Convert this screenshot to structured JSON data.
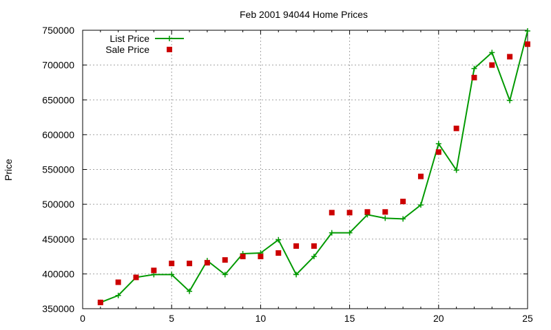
{
  "chart_data": {
    "type": "line",
    "title": "Feb 2001 94044 Home Prices",
    "xlabel": "",
    "ylabel": "Price",
    "xlim": [
      0,
      25
    ],
    "ylim": [
      350000,
      750000
    ],
    "x_ticks": [
      0,
      5,
      10,
      15,
      20,
      25
    ],
    "y_ticks": [
      350000,
      400000,
      450000,
      500000,
      550000,
      600000,
      650000,
      700000,
      750000
    ],
    "grid": true,
    "legend_position": "top-left",
    "series": [
      {
        "name": "List Price",
        "style": "line-with-plus-markers",
        "color": "#009900",
        "x": [
          1,
          2,
          3,
          4,
          5,
          6,
          7,
          8,
          9,
          10,
          11,
          12,
          13,
          14,
          15,
          16,
          17,
          18,
          19,
          20,
          21,
          22,
          23,
          24,
          25
        ],
        "values": [
          359000,
          369000,
          395000,
          399000,
          399000,
          375000,
          419000,
          399000,
          429000,
          430000,
          449000,
          399000,
          425000,
          459000,
          459000,
          485000,
          480000,
          479000,
          499000,
          587000,
          549000,
          695000,
          718000,
          649000,
          749000
        ]
      },
      {
        "name": "Sale Price",
        "style": "square-markers",
        "color": "#cc0000",
        "x": [
          1,
          2,
          3,
          4,
          5,
          6,
          7,
          8,
          9,
          10,
          11,
          12,
          13,
          14,
          15,
          16,
          17,
          18,
          19,
          20,
          21,
          22,
          23,
          24,
          25
        ],
        "values": [
          359000,
          388000,
          395000,
          405000,
          415000,
          415000,
          416000,
          420000,
          425000,
          425000,
          430000,
          440000,
          440000,
          488000,
          488000,
          489000,
          489000,
          504000,
          540000,
          575000,
          609000,
          682000,
          700000,
          712000,
          730000
        ]
      }
    ]
  }
}
